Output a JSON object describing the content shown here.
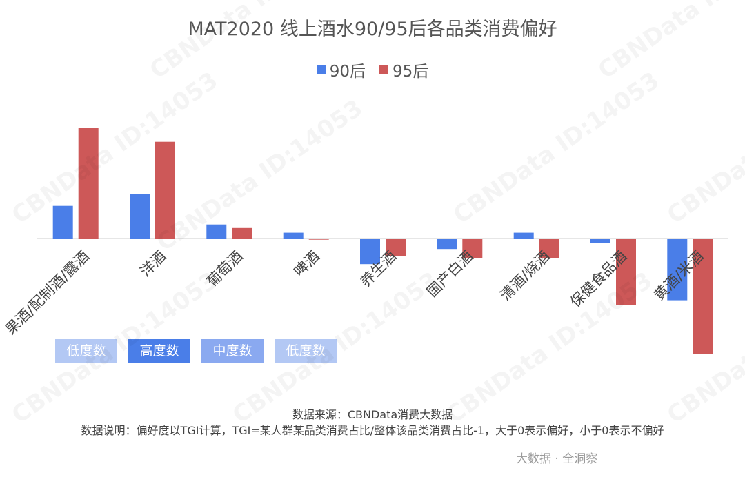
{
  "title": "MAT2020 线上酒水90/95后各品类消费偏好",
  "legend": [
    {
      "name": "90后",
      "color": "#4a7ee8"
    },
    {
      "name": "95后",
      "color": "#cd5858"
    }
  ],
  "tags": [
    {
      "label": "低度数",
      "color": "#b3c8f4"
    },
    {
      "label": "高度数",
      "color": "#4a7ee8"
    },
    {
      "label": "中度数",
      "color": "#8aa9f0"
    },
    {
      "label": "低度数",
      "color": "#b3c8f4"
    }
  ],
  "chart_data": {
    "type": "bar",
    "categories": [
      "果酒/配制酒/露酒",
      "洋酒",
      "葡萄酒",
      "啤酒",
      "养生酒",
      "国产白酒",
      "清酒/烧酒",
      "保健食品酒",
      "黄酒/米酒"
    ],
    "series": [
      {
        "name": "90后",
        "values": [
          0.28,
          0.38,
          0.12,
          0.05,
          -0.22,
          -0.09,
          0.05,
          -0.04,
          -0.53
        ]
      },
      {
        "name": "95后",
        "values": [
          0.95,
          0.83,
          0.09,
          -0.01,
          -0.15,
          -0.17,
          -0.17,
          -0.57,
          -0.99
        ]
      }
    ],
    "ylim": [
      -1.0,
      1.0
    ],
    "grid": false,
    "legend_position": "top-center"
  },
  "footer": {
    "source": "数据来源：CBNData消费大数据",
    "note": "数据说明：偏好度以TGI计算，TGI=某人群某品类消费占比/整体该品类消费占比-1，大于0表示偏好，小于0表示不偏好",
    "brand": "大数据 · 全洞察"
  },
  "watermark": "CBNData ID:14053"
}
